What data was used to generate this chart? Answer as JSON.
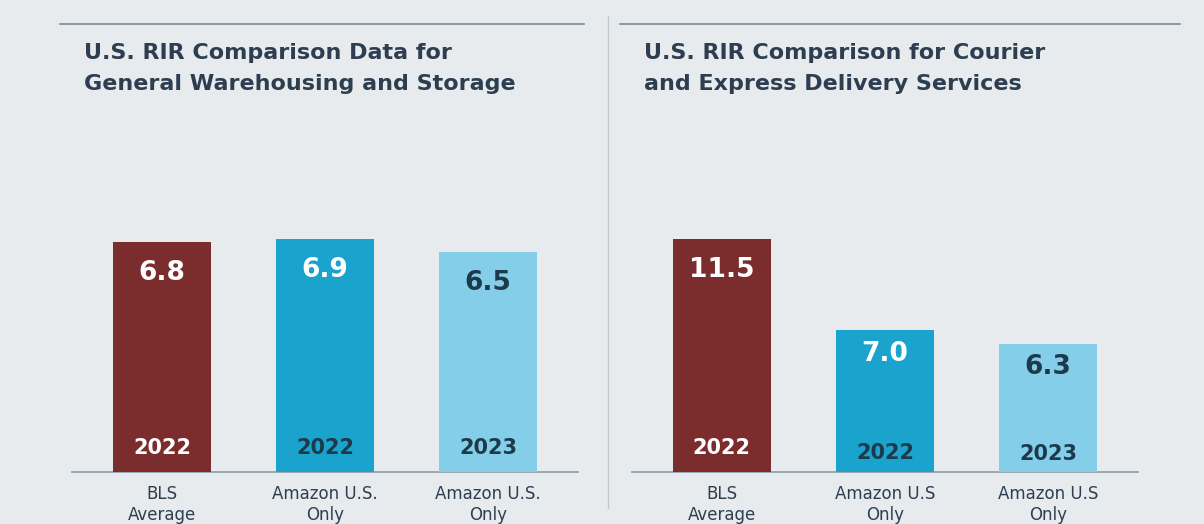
{
  "chart1": {
    "title_line1": "U.S. RIR Comparison Data for",
    "title_line2": "General Warehousing and Storage",
    "categories": [
      "BLS\nAverage",
      "Amazon U.S.\nOnly",
      "Amazon U.S.\nOnly"
    ],
    "values": [
      6.8,
      6.9,
      6.5
    ],
    "years": [
      "2022",
      "2022",
      "2023"
    ],
    "bar_colors": [
      "#7B2D2D",
      "#1AA3CC",
      "#85CEEA"
    ],
    "value_colors": [
      "#FFFFFF",
      "#FFFFFF",
      "#1C3A4A"
    ],
    "year_colors": [
      "#FFFFFF",
      "#1C3A4A",
      "#1C3A4A"
    ]
  },
  "chart2": {
    "title_line1": "U.S. RIR Comparison for Courier",
    "title_line2": "and Express Delivery Services",
    "categories": [
      "BLS\nAverage",
      "Amazon U.S\nOnly",
      "Amazon U.S\nOnly"
    ],
    "values": [
      11.5,
      7.0,
      6.3
    ],
    "years": [
      "2022",
      "2022",
      "2023"
    ],
    "bar_colors": [
      "#7B2D2D",
      "#1AA3CC",
      "#85CEEA"
    ],
    "value_colors": [
      "#FFFFFF",
      "#FFFFFF",
      "#1C3A4A"
    ],
    "year_colors": [
      "#FFFFFF",
      "#1C3A4A",
      "#1C3A4A"
    ]
  },
  "bg_color": "#E8EBEE",
  "title_fontsize": 16,
  "label_fontsize": 12,
  "bar_value_fontsize": 19,
  "bar_year_fontsize": 15,
  "divider_color": "#7A8A99",
  "text_color": "#2C3E50"
}
